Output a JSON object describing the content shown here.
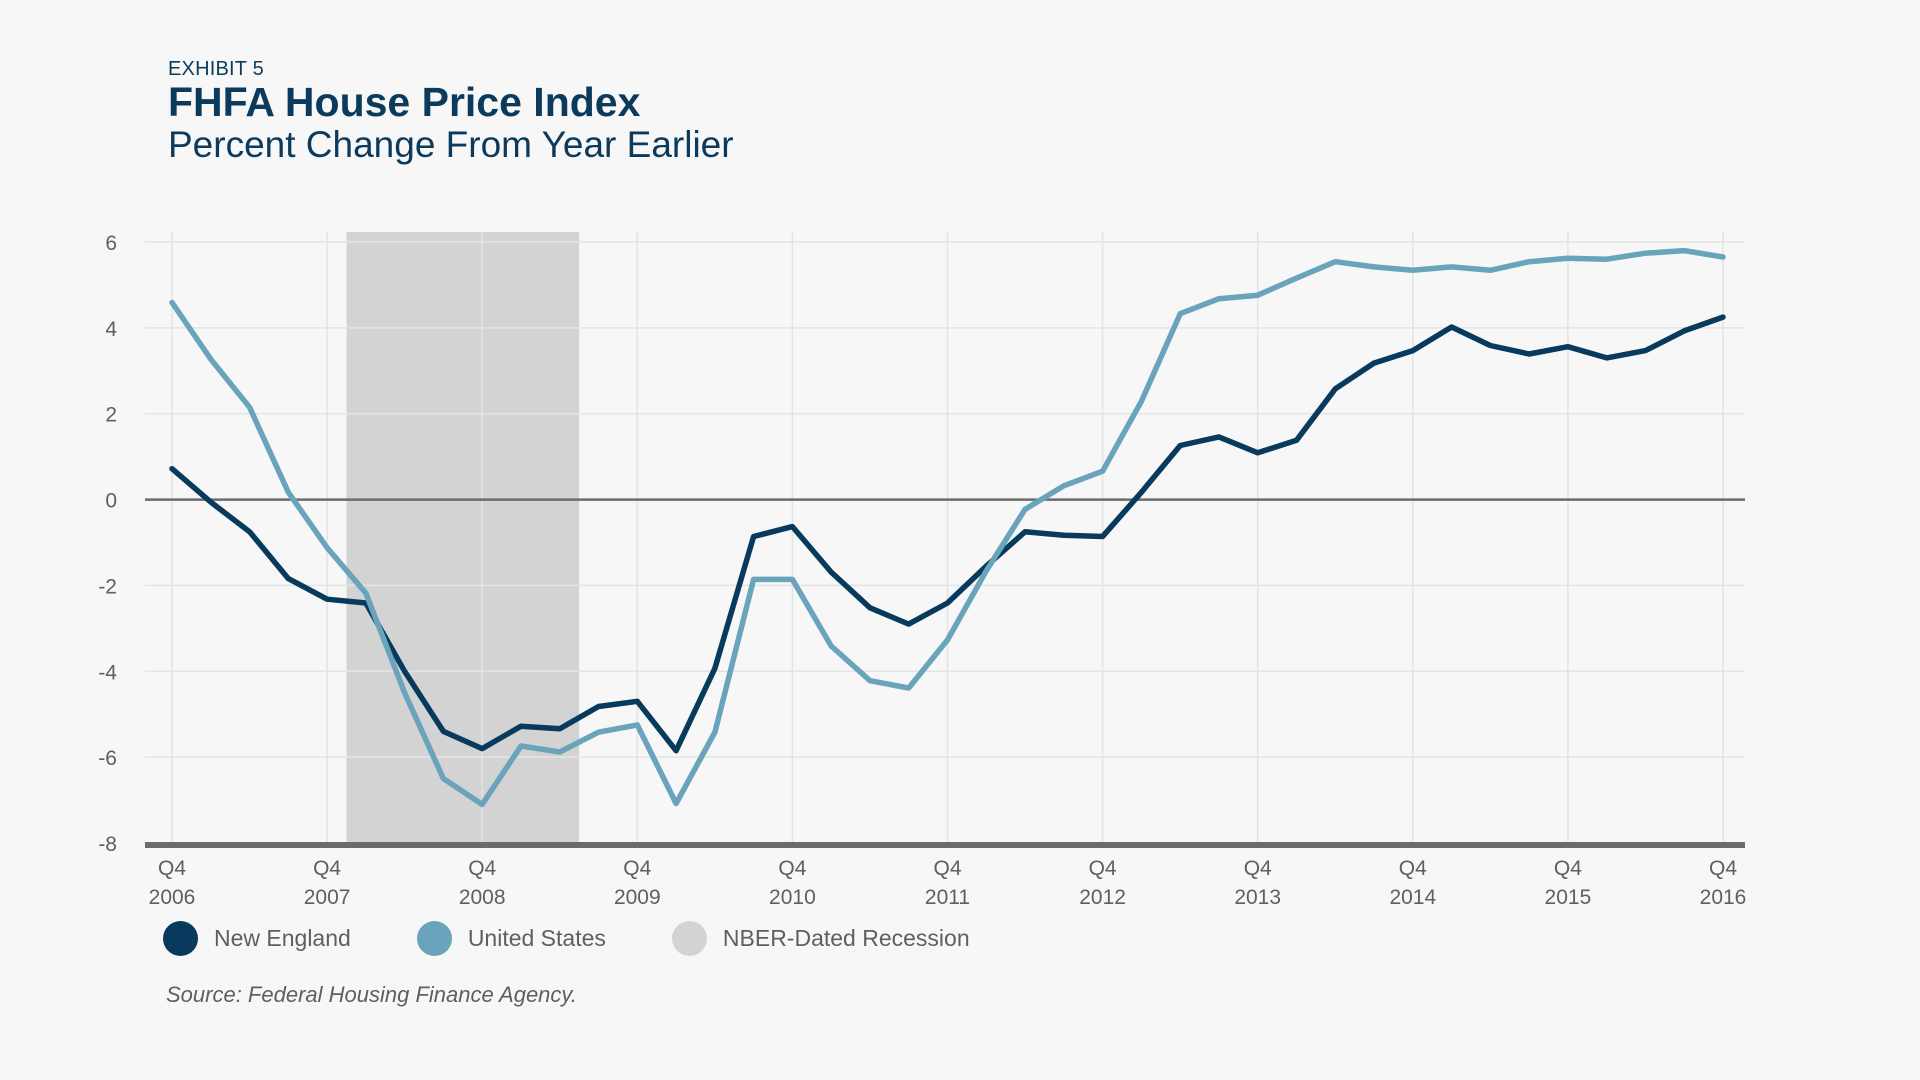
{
  "header": {
    "exhibit": "EXHIBIT 5",
    "title": "FHFA House Price Index",
    "subtitle": "Percent Change From Year Earlier"
  },
  "colors": {
    "new_england": "#073a5c",
    "united_states": "#6aa3bc",
    "recession": "#d3d3d3",
    "zero_line": "#6b6b6b",
    "grid": "#e4e4e4",
    "title": "#0b3a5c"
  },
  "legend": [
    {
      "label": "New England",
      "color": "#073a5c"
    },
    {
      "label": "United States",
      "color": "#6aa3bc"
    },
    {
      "label": "NBER-Dated Recession",
      "color": "#d3d3d3"
    }
  ],
  "source": "Source: Federal Housing Finance Agency.",
  "chart_data": {
    "type": "line",
    "title": "FHFA House Price Index",
    "subtitle": "Percent Change From Year Earlier",
    "xlabel": "",
    "ylabel": "",
    "ylim": [
      -8,
      6
    ],
    "yticks": [
      6,
      4,
      2,
      0,
      -2,
      -4,
      -6,
      -8
    ],
    "grid": true,
    "legend_position": "bottom-left",
    "x": [
      "Q4 2006",
      "Q1 2007",
      "Q2 2007",
      "Q3 2007",
      "Q4 2007",
      "Q1 2008",
      "Q2 2008",
      "Q3 2008",
      "Q4 2008",
      "Q1 2009",
      "Q2 2009",
      "Q3 2009",
      "Q4 2009",
      "Q1 2010",
      "Q2 2010",
      "Q3 2010",
      "Q4 2010",
      "Q1 2011",
      "Q2 2011",
      "Q3 2011",
      "Q4 2011",
      "Q1 2012",
      "Q2 2012",
      "Q3 2012",
      "Q4 2012",
      "Q1 2013",
      "Q2 2013",
      "Q3 2013",
      "Q4 2013",
      "Q1 2014",
      "Q2 2014",
      "Q3 2014",
      "Q4 2014",
      "Q1 2015",
      "Q2 2015",
      "Q3 2015",
      "Q4 2015",
      "Q1 2016",
      "Q2 2016",
      "Q3 2016",
      "Q4 2016"
    ],
    "xticks": [
      {
        "index": 0,
        "line1": "Q4",
        "line2": "2006"
      },
      {
        "index": 4,
        "line1": "Q4",
        "line2": "2007"
      },
      {
        "index": 8,
        "line1": "Q4",
        "line2": "2008"
      },
      {
        "index": 12,
        "line1": "Q4",
        "line2": "2009"
      },
      {
        "index": 16,
        "line1": "Q4",
        "line2": "2010"
      },
      {
        "index": 20,
        "line1": "Q4",
        "line2": "2011"
      },
      {
        "index": 24,
        "line1": "Q4",
        "line2": "2012"
      },
      {
        "index": 28,
        "line1": "Q4",
        "line2": "2013"
      },
      {
        "index": 32,
        "line1": "Q4",
        "line2": "2014"
      },
      {
        "index": 36,
        "line1": "Q4",
        "line2": "2015"
      },
      {
        "index": 40,
        "line1": "Q4",
        "line2": "2016"
      }
    ],
    "recession": {
      "start_index": 4.5,
      "end_index": 10.5,
      "label": "NBER-Dated Recession"
    },
    "series": [
      {
        "name": "New England",
        "color": "#073a5c",
        "values": [
          0.72,
          -0.06,
          -0.75,
          -1.84,
          -2.32,
          -2.41,
          -4.0,
          -5.4,
          -5.8,
          -5.28,
          -5.34,
          -4.82,
          -4.7,
          -5.85,
          -3.93,
          -0.86,
          -0.63,
          -1.69,
          -2.52,
          -2.9,
          -2.41,
          -1.55,
          -0.75,
          -0.83,
          -0.86,
          0.17,
          1.26,
          1.46,
          1.09,
          1.38,
          2.58,
          3.18,
          3.47,
          4.02,
          3.59,
          3.39,
          3.56,
          3.3,
          3.47,
          3.93,
          4.25
        ]
      },
      {
        "name": "United States",
        "color": "#6aa3bc",
        "values": [
          4.59,
          3.27,
          2.15,
          0.17,
          -1.12,
          -2.18,
          -4.5,
          -6.5,
          -7.1,
          -5.74,
          -5.88,
          -5.42,
          -5.25,
          -7.08,
          -5.42,
          -1.86,
          -1.86,
          -3.41,
          -4.22,
          -4.39,
          -3.27,
          -1.66,
          -0.23,
          0.32,
          0.66,
          2.29,
          4.33,
          4.68,
          4.76,
          5.16,
          5.54,
          5.42,
          5.34,
          5.42,
          5.34,
          5.54,
          5.62,
          5.6,
          5.74,
          5.8,
          5.65
        ]
      }
    ]
  }
}
